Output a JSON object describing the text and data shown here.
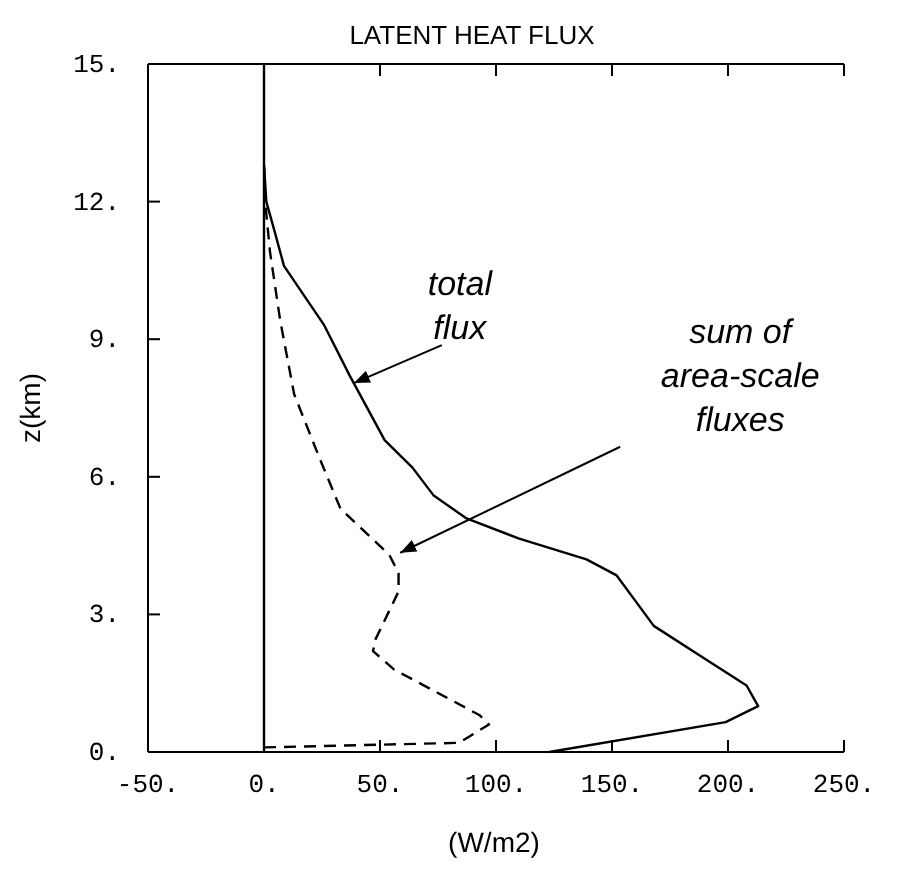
{
  "chart_data": {
    "type": "line",
    "title": "LATENT HEAT  FLUX",
    "xlabel": "(W/m2)",
    "ylabel": "z(km)",
    "xlim": [
      -50,
      250
    ],
    "ylim": [
      0,
      15
    ],
    "xticks": [
      {
        "value": -50,
        "label": "-50."
      },
      {
        "value": 0,
        "label": "0."
      },
      {
        "value": 50,
        "label": "50."
      },
      {
        "value": 100,
        "label": "100."
      },
      {
        "value": 150,
        "label": "150."
      },
      {
        "value": 200,
        "label": "200."
      },
      {
        "value": 250,
        "label": "250."
      }
    ],
    "yticks": [
      {
        "value": 0,
        "label": "0."
      },
      {
        "value": 3,
        "label": "3."
      },
      {
        "value": 6,
        "label": "6."
      },
      {
        "value": 9,
        "label": "9."
      },
      {
        "value": 12,
        "label": "12."
      },
      {
        "value": 15,
        "label": "15."
      }
    ],
    "grid": false,
    "marker": "none",
    "series": [
      {
        "color": "#000000",
        "line_style": "solid",
        "x": [
          123,
          199,
          213,
          208,
          188,
          168,
          160,
          152,
          139,
          110,
          87,
          73,
          64,
          52,
          37,
          26,
          8.6,
          4.3,
          1,
          0
        ],
        "values": [
          0,
          0.65,
          1.0,
          1.45,
          2.1,
          2.75,
          3.3,
          3.85,
          4.2,
          4.65,
          5.1,
          5.6,
          6.2,
          6.8,
          8.2,
          9.3,
          10.6,
          11.4,
          12.0,
          12.8
        ]
      },
      {
        "color": "#000000",
        "line_style": "dashed",
        "x": [
          0,
          84,
          97,
          93,
          56,
          47,
          48,
          58,
          58,
          54,
          33,
          24,
          13,
          7,
          2.6,
          0.5,
          0
        ],
        "values": [
          0.1,
          0.2,
          0.6,
          0.8,
          1.8,
          2.2,
          2.45,
          3.5,
          3.9,
          4.3,
          5.3,
          6.4,
          7.8,
          9.4,
          10.9,
          12.0,
          12.8
        ]
      }
    ],
    "ref_lines": [
      {
        "axis": "x",
        "value": 0,
        "color": "#000000",
        "line_style": "solid"
      }
    ],
    "annotations": [
      {
        "text": "total\nflux",
        "x": 37,
        "y": 8.0
      },
      {
        "text": "sum of\narea-scale\nfluxes",
        "x": 57,
        "y": 4.3
      }
    ]
  }
}
